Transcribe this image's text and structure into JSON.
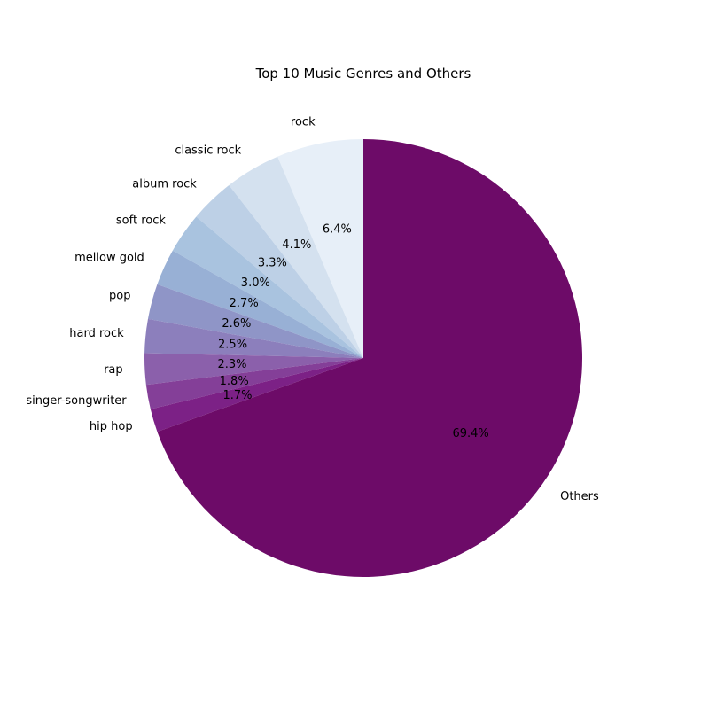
{
  "chart_data": {
    "type": "pie",
    "title": "Top 10 Music Genres and Others",
    "start_angle_deg": 90,
    "direction": "counterclockwise",
    "slices": [
      {
        "label": "rock",
        "value": 6.4,
        "pct_label": "6.4%",
        "color": "#e7eff8"
      },
      {
        "label": "classic rock",
        "value": 4.1,
        "pct_label": "4.1%",
        "color": "#d4e1ef"
      },
      {
        "label": "album rock",
        "value": 3.3,
        "pct_label": "3.3%",
        "color": "#bdd0e6"
      },
      {
        "label": "soft rock",
        "value": 3.0,
        "pct_label": "3.0%",
        "color": "#a9c3df"
      },
      {
        "label": "mellow gold",
        "value": 2.7,
        "pct_label": "2.7%",
        "color": "#98b0d5"
      },
      {
        "label": "pop",
        "value": 2.6,
        "pct_label": "2.6%",
        "color": "#8f95c7"
      },
      {
        "label": "hard rock",
        "value": 2.5,
        "pct_label": "2.5%",
        "color": "#8c7fbc"
      },
      {
        "label": "rap",
        "value": 2.3,
        "pct_label": "2.3%",
        "color": "#8b60ab"
      },
      {
        "label": "singer-songwriter",
        "value": 1.8,
        "pct_label": "1.8%",
        "color": "#843f98"
      },
      {
        "label": "hip hop",
        "value": 1.7,
        "pct_label": "1.7%",
        "color": "#7c2186"
      },
      {
        "label": "Others",
        "value": 69.4,
        "pct_label": "69.4%",
        "color": "#6d0b68"
      }
    ]
  }
}
